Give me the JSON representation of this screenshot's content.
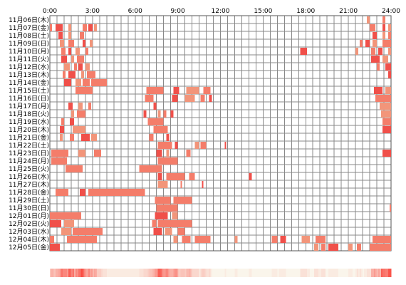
{
  "chart_data": {
    "type": "timeline",
    "title": "",
    "x_axis": {
      "tick_labels": [
        "0:00",
        "3:00",
        "6:00",
        "9:00",
        "12:00",
        "15:00",
        "18:00",
        "21:00",
        "24:00"
      ],
      "range_hours": [
        0,
        24
      ],
      "gridline_step_hours": 0.5
    },
    "grid": true,
    "colors": {
      "bar_light": "#f2957a",
      "bar_mid": "#f47d6a",
      "bar_dark": "#f0504a",
      "grid": "#888888",
      "border": "#555555"
    },
    "rows": [
      {
        "label": "11月06日(木)",
        "blocks": [
          [
            22.3,
            22.5
          ],
          [
            23.4,
            23.6
          ]
        ]
      },
      {
        "label": "11月07日(金)",
        "blocks": [
          [
            0.0,
            0.15
          ],
          [
            0.4,
            0.9
          ],
          [
            1.3,
            1.5
          ],
          [
            2.3,
            2.6
          ],
          [
            2.7,
            3.0
          ],
          [
            3.1,
            3.3
          ],
          [
            22.5,
            22.9
          ],
          [
            23.4,
            23.6
          ],
          [
            23.8,
            24.0
          ]
        ]
      },
      {
        "label": "11月08日(土)",
        "blocks": [
          [
            0.6,
            0.9
          ],
          [
            1.3,
            1.5
          ],
          [
            2.1,
            2.4
          ],
          [
            22.7,
            23.0
          ],
          [
            23.4,
            23.6
          ],
          [
            23.8,
            24.0
          ]
        ]
      },
      {
        "label": "11月09日(日)",
        "blocks": [
          [
            0.7,
            1.0
          ],
          [
            1.3,
            1.7
          ],
          [
            2.3,
            2.5
          ],
          [
            2.8,
            3.0
          ],
          [
            21.8,
            22.0
          ],
          [
            22.2,
            22.5
          ],
          [
            22.7,
            23.0
          ],
          [
            23.4,
            24.0
          ]
        ]
      },
      {
        "label": "11月10日(月)",
        "blocks": [
          [
            0.8,
            1.1
          ],
          [
            1.3,
            1.5
          ],
          [
            1.8,
            2.1
          ],
          [
            2.5,
            2.7
          ],
          [
            17.6,
            18.1
          ],
          [
            21.5,
            21.7
          ],
          [
            22.6,
            22.9
          ],
          [
            23.1,
            23.4
          ],
          [
            23.8,
            24.0
          ]
        ]
      },
      {
        "label": "11月11日(火)",
        "blocks": [
          [
            0.8,
            1.2
          ],
          [
            1.5,
            1.7
          ],
          [
            1.9,
            2.4
          ],
          [
            22.6,
            23.2
          ],
          [
            23.4,
            23.8
          ]
        ]
      },
      {
        "label": "11月12日(水)",
        "blocks": [
          [
            1.0,
            1.4
          ],
          [
            1.7,
            1.9
          ],
          [
            2.0,
            2.3
          ],
          [
            2.5,
            2.8
          ],
          [
            23.0,
            23.2
          ],
          [
            23.6,
            24.0
          ]
        ]
      },
      {
        "label": "11月13日(木)",
        "blocks": [
          [
            0.9,
            1.1
          ],
          [
            1.3,
            1.8
          ],
          [
            2.2,
            2.4
          ],
          [
            2.6,
            3.2
          ],
          [
            23.8,
            24.0
          ]
        ]
      },
      {
        "label": "11月14日(金)",
        "blocks": [
          [
            1.0,
            1.5
          ],
          [
            1.8,
            2.2
          ],
          [
            2.3,
            2.8
          ],
          [
            2.9,
            4.0
          ]
        ]
      },
      {
        "label": "11月15日(土)",
        "blocks": [
          [
            1.8,
            3.0
          ],
          [
            6.8,
            8.0
          ],
          [
            8.7,
            9.1
          ],
          [
            9.6,
            10.5
          ],
          [
            10.8,
            11.3
          ],
          [
            22.8,
            23.4
          ],
          [
            23.6,
            24.0
          ]
        ]
      },
      {
        "label": "11月16日(日)",
        "blocks": [
          [
            6.7,
            7.3
          ],
          [
            8.6,
            9.0
          ],
          [
            9.5,
            10.2
          ],
          [
            10.6,
            10.9
          ],
          [
            11.2,
            11.4
          ],
          [
            22.9,
            24.0
          ]
        ]
      },
      {
        "label": "11月17日(月)",
        "blocks": [
          [
            1.3,
            1.6
          ],
          [
            2.0,
            2.3
          ],
          [
            2.7,
            2.9
          ],
          [
            7.3,
            7.5
          ],
          [
            23.2,
            24.0
          ]
        ]
      },
      {
        "label": "11月18日(火)",
        "blocks": [
          [
            1.5,
            1.7
          ],
          [
            1.9,
            2.5
          ],
          [
            6.6,
            6.8
          ],
          [
            7.6,
            7.8
          ],
          [
            8.0,
            8.2
          ],
          [
            8.5,
            8.7
          ],
          [
            23.3,
            24.0
          ]
        ]
      },
      {
        "label": "11月19日(水)",
        "blocks": [
          [
            0.8,
            1.0
          ],
          [
            1.4,
            1.7
          ],
          [
            6.9,
            8.0
          ],
          [
            23.4,
            24.0
          ]
        ]
      },
      {
        "label": "11月20日(木)",
        "blocks": [
          [
            0.7,
            1.0
          ],
          [
            1.6,
            2.5
          ],
          [
            7.3,
            8.3
          ],
          [
            23.4,
            24.0
          ]
        ]
      },
      {
        "label": "11月21日(金)",
        "blocks": [
          [
            0.7,
            0.9
          ],
          [
            1.4,
            1.7
          ],
          [
            2.2,
            2.8
          ],
          [
            2.9,
            3.3
          ],
          [
            7.0,
            7.3
          ],
          [
            8.2,
            8.4
          ]
        ]
      },
      {
        "label": "11月22日(土)",
        "blocks": [
          [
            7.6,
            8.6
          ],
          [
            8.8,
            9.0
          ],
          [
            10.2,
            10.5
          ],
          [
            10.6,
            11.0
          ],
          [
            12.3,
            12.4
          ]
        ]
      },
      {
        "label": "11月23日(日)",
        "blocks": [
          [
            0.1,
            1.3
          ],
          [
            2.0,
            2.5
          ],
          [
            3.1,
            3.6
          ],
          [
            7.5,
            7.9
          ],
          [
            8.2,
            8.4
          ],
          [
            9.6,
            9.9
          ],
          [
            23.4,
            24.0
          ]
        ]
      },
      {
        "label": "11月24日(月)",
        "blocks": [
          [
            0.1,
            1.2
          ],
          [
            7.6,
            9.0
          ]
        ]
      },
      {
        "label": "11月25日(火)",
        "blocks": [
          [
            1.1,
            2.3
          ],
          [
            6.3,
            7.9
          ]
        ]
      },
      {
        "label": "11月26日(水)",
        "blocks": [
          [
            7.6,
            7.9
          ],
          [
            8.2,
            9.5
          ],
          [
            9.8,
            10.2
          ],
          [
            14.0,
            14.2
          ]
        ]
      },
      {
        "label": "11月27日(木)",
        "blocks": [
          [
            7.6,
            8.3
          ],
          [
            9.2,
            9.3
          ],
          [
            10.7,
            10.8
          ]
        ]
      },
      {
        "label": "11月28日(金)",
        "blocks": [
          [
            0.4,
            1.3
          ],
          [
            2.1,
            2.5
          ],
          [
            2.7,
            6.7
          ]
        ]
      },
      {
        "label": "11月29日(土)",
        "blocks": [
          [
            7.4,
            8.5
          ],
          [
            8.7,
            10.0
          ]
        ]
      },
      {
        "label": "11月30日(日)",
        "blocks": [
          [
            7.5,
            9.0
          ],
          [
            23.9,
            24.0
          ]
        ]
      },
      {
        "label": "12月01日(月)",
        "blocks": [
          [
            0.0,
            2.2
          ],
          [
            7.4,
            8.3
          ],
          [
            8.6,
            9.0
          ]
        ]
      },
      {
        "label": "12月02日(火)",
        "blocks": [
          [
            0.0,
            0.8
          ],
          [
            1.0,
            1.7
          ],
          [
            7.2,
            7.5
          ],
          [
            7.6,
            10.0
          ]
        ]
      },
      {
        "label": "12月03日(水)",
        "blocks": [
          [
            0.8,
            1.5
          ],
          [
            1.6,
            3.7
          ],
          [
            7.3,
            7.9
          ],
          [
            8.1,
            8.6
          ],
          [
            9.0,
            9.5
          ]
        ]
      },
      {
        "label": "12月04日(木)",
        "blocks": [
          [
            0.0,
            0.3
          ],
          [
            1.2,
            3.3
          ],
          [
            8.7,
            9.0
          ],
          [
            9.3,
            9.9
          ],
          [
            10.2,
            11.3
          ],
          [
            13.0,
            13.2
          ],
          [
            15.6,
            16.0
          ],
          [
            16.2,
            16.6
          ],
          [
            17.7,
            18.3
          ],
          [
            18.7,
            19.4
          ],
          [
            22.7,
            24.0
          ]
        ]
      },
      {
        "label": "12月05日(金)",
        "blocks": [
          [
            0.0,
            0.7
          ],
          [
            18.6,
            18.9
          ],
          [
            19.1,
            19.4
          ],
          [
            19.6,
            20.3
          ],
          [
            21.0,
            21.3
          ],
          [
            21.6,
            21.9
          ],
          [
            22.5,
            24.0
          ]
        ]
      }
    ]
  }
}
